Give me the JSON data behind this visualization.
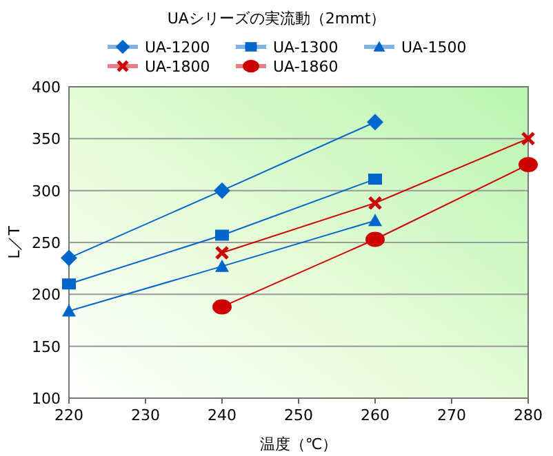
{
  "chart_data": {
    "type": "line",
    "title": "UAシリーズの実流動（2mmt）",
    "xlabel": "温度（℃）",
    "ylabel": "L／T",
    "xlim": [
      220,
      280
    ],
    "xticks": [
      220,
      230,
      240,
      250,
      260,
      270,
      280
    ],
    "ylim": [
      100,
      400
    ],
    "yticks": [
      100,
      150,
      200,
      250,
      300,
      350,
      400
    ],
    "grid": "y",
    "legend": "top",
    "line_style": "solid",
    "series": [
      {
        "name": "UA-1200",
        "color": "#0066cc",
        "marker": "diamond",
        "x": [
          220,
          240,
          260
        ],
        "values": [
          235,
          300,
          366
        ]
      },
      {
        "name": "UA-1300",
        "color": "#0066cc",
        "marker": "square",
        "x": [
          220,
          240,
          260
        ],
        "values": [
          210,
          257,
          311
        ]
      },
      {
        "name": "UA-1500",
        "color": "#0066cc",
        "marker": "triangle",
        "x": [
          220,
          240,
          260
        ],
        "values": [
          184,
          227,
          271
        ]
      },
      {
        "name": "UA-1800",
        "color": "#cc0000",
        "marker": "cross",
        "x": [
          240,
          260,
          280
        ],
        "values": [
          240,
          288,
          350
        ]
      },
      {
        "name": "UA-1860",
        "color": "#cc0000",
        "marker": "circle",
        "x": [
          240,
          260,
          280
        ],
        "values": [
          188,
          253,
          325
        ]
      }
    ]
  }
}
